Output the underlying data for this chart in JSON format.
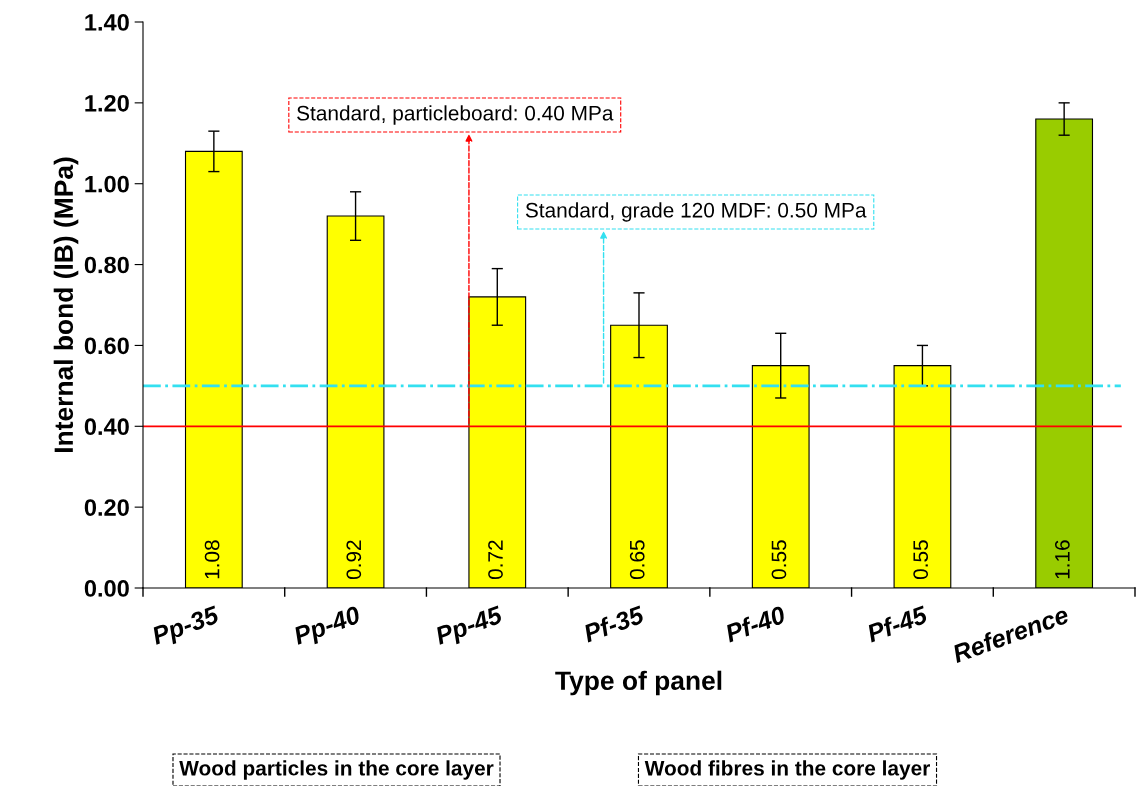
{
  "chart_data": {
    "type": "bar",
    "xlabel": "Type of panel",
    "ylabel": "Internal bond (IB) (MPa)",
    "categories": [
      "Pp-35",
      "Pp-40",
      "Pp-45",
      "Pf-35",
      "Pf-40",
      "Pf-45",
      "Reference"
    ],
    "values": [
      1.08,
      0.92,
      0.72,
      0.65,
      0.55,
      0.55,
      1.16
    ],
    "colors": [
      "#ffff00",
      "#ffff00",
      "#ffff00",
      "#ffff00",
      "#ffff00",
      "#ffff00",
      "#99cc00"
    ],
    "errors": [
      0.05,
      0.06,
      0.07,
      0.08,
      0.08,
      0.05,
      0.04
    ],
    "data_labels": true,
    "ylim": [
      0,
      1.4
    ],
    "yticks": [
      {
        "value": 0,
        "label": "0.00"
      },
      {
        "value": 0.2,
        "label": "0.20"
      },
      {
        "value": 0.4,
        "label": "0.40"
      },
      {
        "value": 0.6,
        "label": "0.60"
      },
      {
        "value": 0.8,
        "label": "0.80"
      },
      {
        "value": 1.0,
        "label": "1.00"
      },
      {
        "value": 1.2,
        "label": "1.20"
      },
      {
        "value": 1.4,
        "label": "1.40"
      }
    ],
    "grid": false,
    "ref_lines": [
      {
        "axis": "y",
        "value": 0.4,
        "label": "Standard, particleboard: 0.40 MPa",
        "color": "#ff0000",
        "line_style": "solid"
      },
      {
        "axis": "y",
        "value": 0.5,
        "label": "Standard, grade 120 MDF: 0.50 MPa",
        "color": "#33e0f0",
        "line_style": "dashdot"
      }
    ],
    "annotations": [
      "Wood particles in the core layer",
      "Wood fibres in the core layer"
    ]
  }
}
